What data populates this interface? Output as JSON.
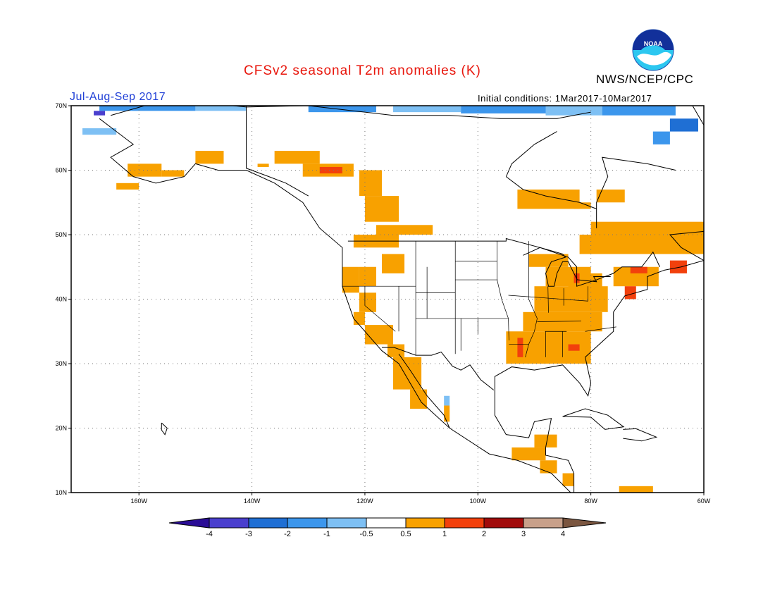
{
  "title": "CFSv2 seasonal T2m anomalies (K)",
  "agency": "NWS/NCEP/CPC",
  "season": "Jul-Aug-Sep 2017",
  "initial_conditions": "Initial conditions: 1Mar2017-10Mar2017",
  "logo": {
    "text": "NOAA",
    "icon": "noaa-logo-icon"
  },
  "axes": {
    "lat_labels": [
      "70N",
      "60N",
      "50N",
      "40N",
      "30N",
      "20N",
      "10N"
    ],
    "lon_labels": [
      "160W",
      "140W",
      "120W",
      "100W",
      "80W",
      "60W"
    ]
  },
  "colorbar": {
    "tick_labels": [
      "-4",
      "-3",
      "-2",
      "-1",
      "-0.5",
      "0.5",
      "1",
      "2",
      "3",
      "4"
    ],
    "colors": [
      "#2a0d96",
      "#4a3fce",
      "#1f6fd4",
      "#3c96ec",
      "#7ec0f4",
      "#ffffff",
      "#f8a100",
      "#f2400c",
      "#a10b0b",
      "#c8a08a",
      "#7b5640"
    ]
  },
  "colors": {
    "warm_0_5_1": "#f8a100",
    "warm_1_2": "#f2400c",
    "cool_neg_0_5": "#7ec0f4",
    "cool_neg_1": "#3c96ec",
    "cool_neg_2": "#1f6fd4",
    "cool_neg_3": "#4a3fce"
  }
}
